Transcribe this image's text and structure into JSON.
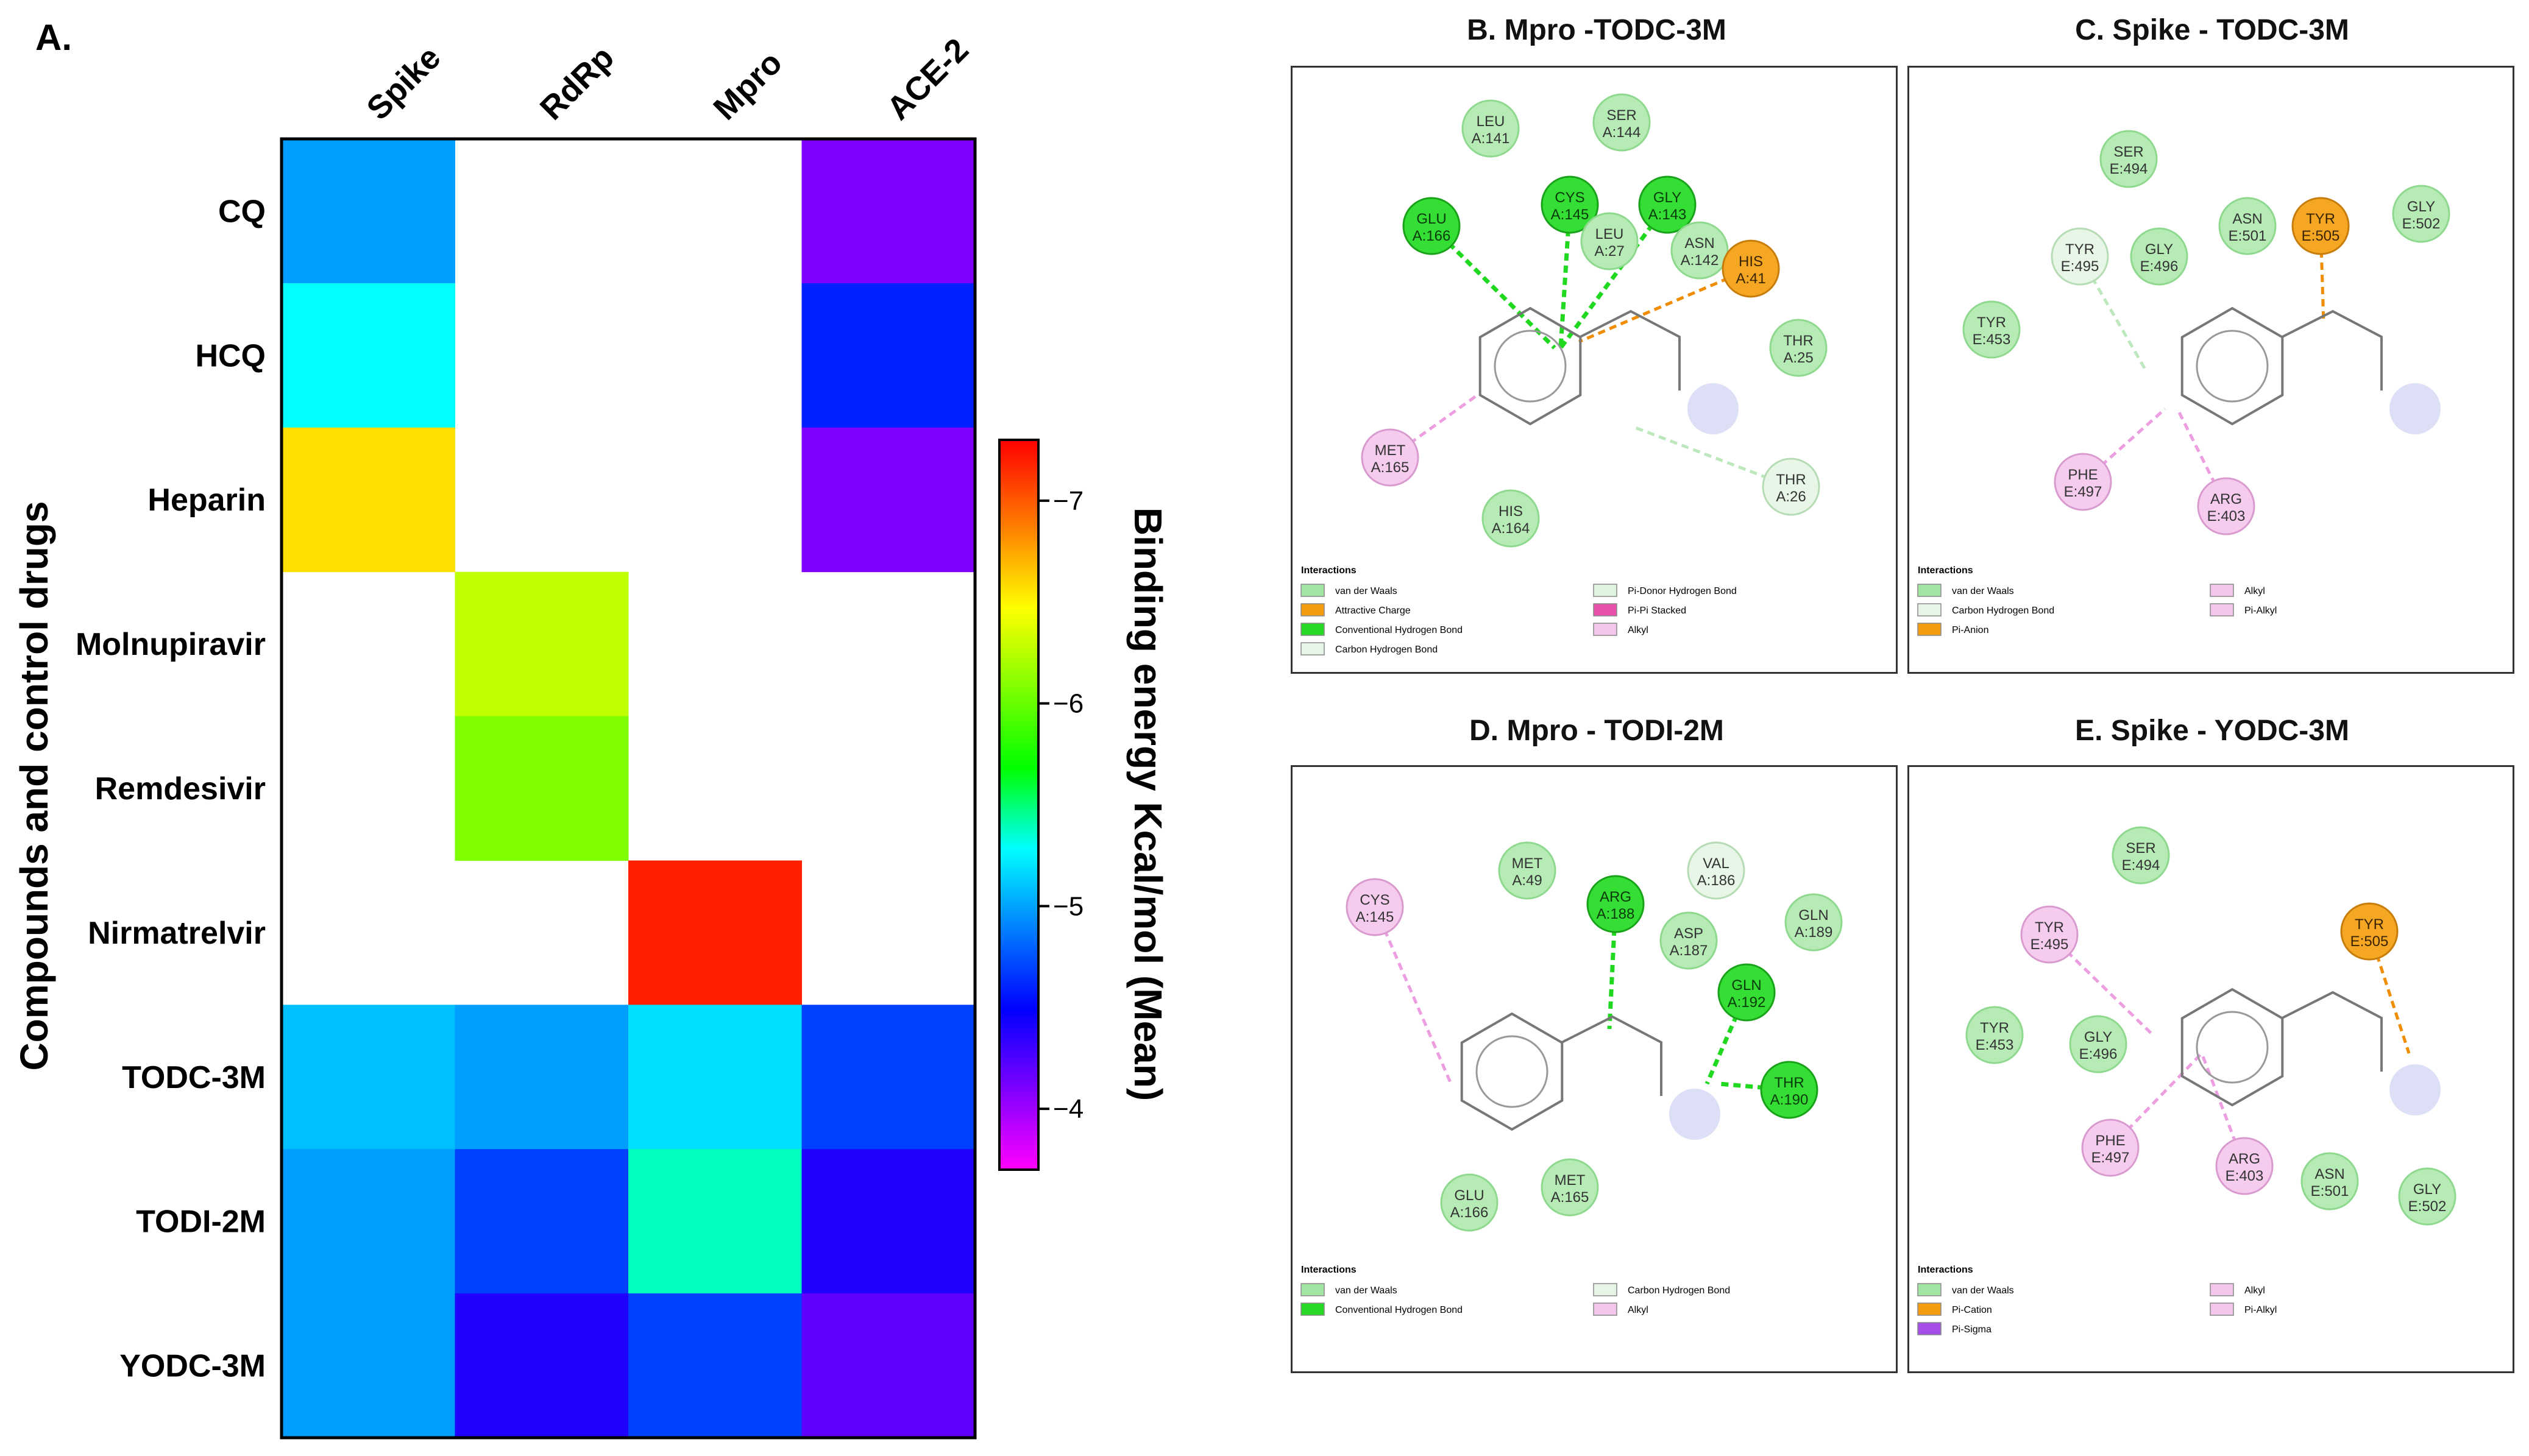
{
  "chart_data": {
    "type": "heatmap",
    "panel_label": "A.",
    "columns": [
      "Spike",
      "RdRp",
      "Mpro",
      "ACE-2"
    ],
    "rows": [
      "CQ",
      "HCQ",
      "Heparin",
      "Molnupiravir",
      "Remdesivir",
      "Nirmatrelvir",
      "TODC-3M",
      "TODI-2M",
      "YODC-3M"
    ],
    "values": [
      [
        -5.0,
        null,
        null,
        -4.1
      ],
      [
        -5.3,
        null,
        null,
        -4.6
      ],
      [
        -6.6,
        null,
        null,
        -4.1
      ],
      [
        null,
        -6.3,
        null,
        null
      ],
      [
        null,
        -6.1,
        null,
        null
      ],
      [
        null,
        null,
        -7.2,
        null
      ],
      [
        -5.1,
        -5.0,
        -5.2,
        -4.7
      ],
      [
        -5.0,
        -4.7,
        -5.4,
        -4.4
      ],
      [
        -5.0,
        -4.4,
        -4.7,
        -4.2
      ]
    ],
    "ylabel": "Compounds and control drugs",
    "colorbar": {
      "label": "Binding energy Kcal/mol (Mean)",
      "min": -3.7,
      "max": -7.3,
      "ticks": [
        -7,
        -6,
        -5,
        -4
      ],
      "tick_labels": [
        "−7",
        "−6",
        "−5",
        "−4"
      ],
      "colors": [
        "#ff00ff",
        "#7f00ff",
        "#0000ff",
        "#007fff",
        "#00ffff",
        "#00ff00",
        "#7fff00",
        "#ffff00",
        "#ff7f00",
        "#ff0000"
      ]
    }
  },
  "panels": [
    {
      "title": "B. Mpro -TODC-3M",
      "residues": [
        {
          "name": "LEU",
          "id": "A:141",
          "type": "vdw"
        },
        {
          "name": "SER",
          "id": "A:144",
          "type": "vdw"
        },
        {
          "name": "GLU",
          "id": "A:166",
          "type": "hbond"
        },
        {
          "name": "CYS",
          "id": "A:145",
          "type": "hbond"
        },
        {
          "name": "GLY",
          "id": "A:143",
          "type": "hbond"
        },
        {
          "name": "LEU",
          "id": "A:27",
          "type": "vdw"
        },
        {
          "name": "ASN",
          "id": "A:142",
          "type": "vdw"
        },
        {
          "name": "HIS",
          "id": "A:41",
          "type": "charge"
        },
        {
          "name": "THR",
          "id": "A:25",
          "type": "vdw"
        },
        {
          "name": "MET",
          "id": "A:165",
          "type": "alkyl"
        },
        {
          "name": "THR",
          "id": "A:26",
          "type": "chbond"
        },
        {
          "name": "HIS",
          "id": "A:164",
          "type": "vdw"
        }
      ],
      "legend_title": "Interactions",
      "legend": [
        {
          "label": "van der Waals",
          "color": "#a3e6a3"
        },
        {
          "label": "Pi-Donor Hydrogen Bond",
          "color": "#dff5df"
        },
        {
          "label": "Attractive Charge",
          "color": "#f39c12"
        },
        {
          "label": "Pi-Pi Stacked",
          "color": "#e84fa8"
        },
        {
          "label": "Conventional Hydrogen Bond",
          "color": "#27d827"
        },
        {
          "label": "Alkyl",
          "color": "#f5c6ec"
        },
        {
          "label": "Carbon Hydrogen Bond",
          "color": "#e6f5e6"
        }
      ]
    },
    {
      "title": "C. Spike - TODC-3M",
      "residues": [
        {
          "name": "SER",
          "id": "E:494",
          "type": "vdw"
        },
        {
          "name": "ASN",
          "id": "E:501",
          "type": "vdw"
        },
        {
          "name": "TYR",
          "id": "E:505",
          "type": "charge"
        },
        {
          "name": "GLY",
          "id": "E:502",
          "type": "vdw"
        },
        {
          "name": "TYR",
          "id": "E:495",
          "type": "chbond"
        },
        {
          "name": "GLY",
          "id": "E:496",
          "type": "vdw"
        },
        {
          "name": "TYR",
          "id": "E:453",
          "type": "vdw"
        },
        {
          "name": "PHE",
          "id": "E:497",
          "type": "alkyl"
        },
        {
          "name": "ARG",
          "id": "E:403",
          "type": "alkyl"
        }
      ],
      "legend_title": "Interactions",
      "legend": [
        {
          "label": "van der Waals",
          "color": "#a3e6a3"
        },
        {
          "label": "Alkyl",
          "color": "#f5c6ec"
        },
        {
          "label": "Carbon Hydrogen Bond",
          "color": "#e6f5e6"
        },
        {
          "label": "Pi-Alkyl",
          "color": "#f5c6ec"
        },
        {
          "label": "Pi-Anion",
          "color": "#f39c12"
        }
      ]
    },
    {
      "title": "D. Mpro - TODI-2M",
      "residues": [
        {
          "name": "CYS",
          "id": "A:145",
          "type": "alkyl"
        },
        {
          "name": "MET",
          "id": "A:49",
          "type": "vdw"
        },
        {
          "name": "ARG",
          "id": "A:188",
          "type": "hbond"
        },
        {
          "name": "VAL",
          "id": "A:186",
          "type": "chbond"
        },
        {
          "name": "ASP",
          "id": "A:187",
          "type": "vdw"
        },
        {
          "name": "GLN",
          "id": "A:189",
          "type": "vdw"
        },
        {
          "name": "GLN",
          "id": "A:192",
          "type": "hbond"
        },
        {
          "name": "THR",
          "id": "A:190",
          "type": "hbond"
        },
        {
          "name": "GLU",
          "id": "A:166",
          "type": "vdw"
        },
        {
          "name": "MET",
          "id": "A:165",
          "type": "vdw"
        }
      ],
      "legend_title": "Interactions",
      "legend": [
        {
          "label": "van der Waals",
          "color": "#a3e6a3"
        },
        {
          "label": "Carbon Hydrogen Bond",
          "color": "#e6f5e6"
        },
        {
          "label": "Conventional Hydrogen Bond",
          "color": "#27d827"
        },
        {
          "label": "Alkyl",
          "color": "#f5c6ec"
        }
      ]
    },
    {
      "title": "E. Spike - YODC-3M",
      "residues": [
        {
          "name": "SER",
          "id": "E:494",
          "type": "vdw"
        },
        {
          "name": "TYR",
          "id": "E:495",
          "type": "alkyl"
        },
        {
          "name": "TYR",
          "id": "E:505",
          "type": "charge"
        },
        {
          "name": "TYR",
          "id": "E:453",
          "type": "vdw"
        },
        {
          "name": "GLY",
          "id": "E:496",
          "type": "vdw"
        },
        {
          "name": "PHE",
          "id": "E:497",
          "type": "alkyl"
        },
        {
          "name": "ARG",
          "id": "E:403",
          "type": "alkyl"
        },
        {
          "name": "ASN",
          "id": "E:501",
          "type": "vdw"
        },
        {
          "name": "GLY",
          "id": "E:502",
          "type": "vdw"
        }
      ],
      "legend_title": "Interactions",
      "legend": [
        {
          "label": "van der Waals",
          "color": "#a3e6a3"
        },
        {
          "label": "Alkyl",
          "color": "#f5c6ec"
        },
        {
          "label": "Pi-Cation",
          "color": "#f39c12"
        },
        {
          "label": "Pi-Alkyl",
          "color": "#f5c6ec"
        },
        {
          "label": "Pi-Sigma",
          "color": "#a64fe8"
        }
      ]
    }
  ]
}
